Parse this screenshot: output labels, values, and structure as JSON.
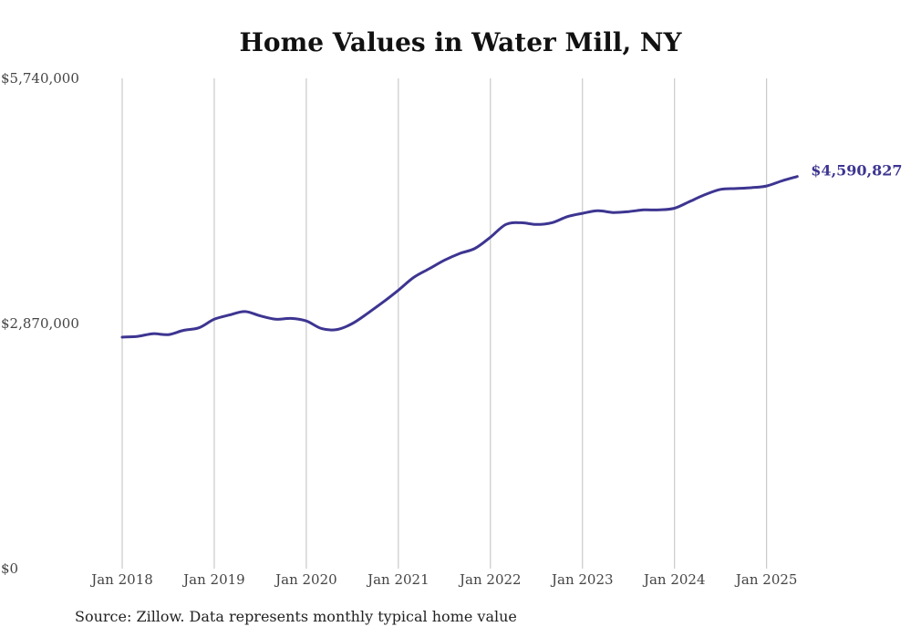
{
  "title": "Home Values in Water Mill, NY",
  "source": "Source: Zillow. Data represents monthly typical home value",
  "colors": {
    "line": "#3d3591",
    "grid": "#bfbfbf",
    "text": "#444444"
  },
  "chart_data": {
    "type": "line",
    "title": "Home Values in Water Mill, NY",
    "xlabel": "",
    "ylabel": "",
    "y_tick_labels": [
      "$0",
      "$2,870,000",
      "$5,740,000"
    ],
    "y_ticks": [
      0,
      2870000,
      5740000
    ],
    "ylim": [
      0,
      5740000
    ],
    "x_tick_labels": [
      "Jan 2018",
      "Jan 2019",
      "Jan 2020",
      "Jan 2021",
      "Jan 2022",
      "Jan 2023",
      "Jan 2024",
      "Jan 2025"
    ],
    "x_ticks": [
      2018.0,
      2019.0,
      2020.0,
      2021.0,
      2022.0,
      2023.0,
      2024.0,
      2025.0
    ],
    "xlim": [
      2018.0,
      2025.33
    ],
    "grid": "vertical",
    "end_label": "$4,590,827",
    "series": [
      {
        "x": [
          2018.0,
          2018.167,
          2018.333,
          2018.5,
          2018.667,
          2018.833,
          2019.0,
          2019.167,
          2019.333,
          2019.5,
          2019.667,
          2019.833,
          2020.0,
          2020.167,
          2020.333,
          2020.5,
          2020.667,
          2020.833,
          2021.0,
          2021.167,
          2021.333,
          2021.5,
          2021.667,
          2021.833,
          2022.0,
          2022.167,
          2022.333,
          2022.5,
          2022.667,
          2022.833,
          2023.0,
          2023.167,
          2023.333,
          2023.5,
          2023.667,
          2023.833,
          2024.0,
          2024.167,
          2024.333,
          2024.5,
          2024.667,
          2024.833,
          2025.0,
          2025.167,
          2025.333
        ],
        "values": [
          2710000,
          2720000,
          2750000,
          2740000,
          2790000,
          2820000,
          2920000,
          2970000,
          3010000,
          2960000,
          2920000,
          2930000,
          2900000,
          2810000,
          2800000,
          2870000,
          2990000,
          3120000,
          3260000,
          3410000,
          3510000,
          3610000,
          3690000,
          3750000,
          3880000,
          4030000,
          4050000,
          4030000,
          4050000,
          4120000,
          4160000,
          4190000,
          4170000,
          4180000,
          4200000,
          4200000,
          4220000,
          4300000,
          4380000,
          4440000,
          4450000,
          4460000,
          4480000,
          4540000,
          4590827
        ]
      }
    ]
  }
}
